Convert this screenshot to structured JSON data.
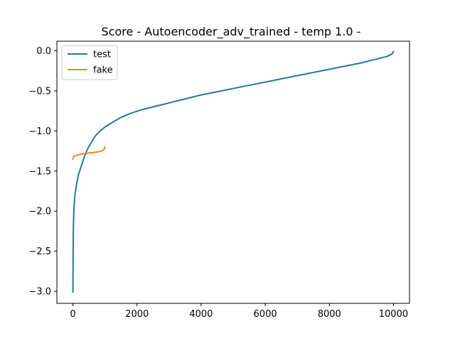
{
  "chart_data": {
    "type": "line",
    "title": "Score - Autoencoder_adv_trained - temp 1.0 -",
    "xlabel": "",
    "ylabel": "",
    "xlim": [
      -500,
      10500
    ],
    "ylim": [
      -3.15,
      0.12
    ],
    "xticks": [
      0,
      2000,
      4000,
      6000,
      8000,
      10000
    ],
    "xtick_labels": [
      "0",
      "2000",
      "4000",
      "6000",
      "8000",
      "10000"
    ],
    "yticks": [
      0.0,
      -0.5,
      -1.0,
      -1.5,
      -2.0,
      -2.5,
      -3.0
    ],
    "ytick_labels": [
      "0.0",
      "−0.5",
      "−1.0",
      "−1.5",
      "−2.0",
      "−2.5",
      "−3.0"
    ],
    "grid": false,
    "legend": "upper-left",
    "series": [
      {
        "name": "test",
        "color": "#1f77b4",
        "x": [
          0,
          5,
          15,
          30,
          50,
          80,
          120,
          170,
          250,
          350,
          450,
          550,
          700,
          850,
          1000,
          1200,
          1500,
          1800,
          2100,
          2500,
          3000,
          3500,
          4000,
          4500,
          5000,
          5500,
          6000,
          6500,
          7000,
          7500,
          8000,
          8500,
          9000,
          9500,
          9800,
          9950,
          10000
        ],
        "y": [
          -3.01,
          -2.6,
          -2.2,
          -2.0,
          -1.85,
          -1.75,
          -1.65,
          -1.55,
          -1.45,
          -1.33,
          -1.23,
          -1.16,
          -1.06,
          -1.0,
          -0.95,
          -0.9,
          -0.83,
          -0.78,
          -0.74,
          -0.7,
          -0.65,
          -0.6,
          -0.55,
          -0.51,
          -0.47,
          -0.43,
          -0.39,
          -0.35,
          -0.31,
          -0.27,
          -0.23,
          -0.19,
          -0.15,
          -0.1,
          -0.07,
          -0.04,
          -0.01
        ]
      },
      {
        "name": "fake",
        "color": "#ff7f0e",
        "x": [
          0,
          10,
          30,
          60,
          100,
          150,
          200,
          300,
          400,
          500,
          600,
          700,
          800,
          880,
          940,
          970,
          990,
          1000
        ],
        "y": [
          -1.35,
          -1.33,
          -1.32,
          -1.31,
          -1.305,
          -1.3,
          -1.295,
          -1.285,
          -1.28,
          -1.275,
          -1.27,
          -1.265,
          -1.26,
          -1.25,
          -1.24,
          -1.23,
          -1.21,
          -1.2
        ]
      }
    ]
  }
}
